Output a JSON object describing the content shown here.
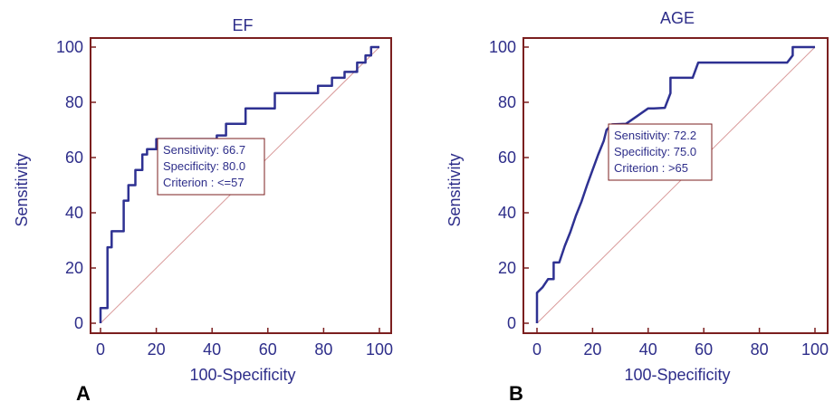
{
  "colors": {
    "curve": "#2e3192",
    "frame": "#7b1f1f",
    "diagonal": "#d99a9a",
    "text": "#2e2e8a",
    "tick": "#7b1f1f"
  },
  "chart_data": [
    {
      "type": "line",
      "panel": "A",
      "title": "EF",
      "xlabel": "100-Specificity",
      "ylabel": "Sensitivity",
      "xlim": [
        0,
        100
      ],
      "ylim": [
        0,
        100
      ],
      "xticks": [
        "0",
        "20",
        "40",
        "60",
        "80",
        "100"
      ],
      "yticks": [
        "0",
        "20",
        "40",
        "60",
        "80",
        "100"
      ],
      "reference_line": [
        [
          0,
          0
        ],
        [
          100,
          100
        ]
      ],
      "series": [
        {
          "x": [
            0,
            0,
            2.5,
            2.5,
            4,
            4,
            8.3,
            8.3,
            10,
            10,
            12.5,
            12.5,
            15,
            15,
            16.7,
            16.7,
            20,
            20,
            41.7,
            41.7,
            45,
            45,
            52,
            52,
            62.5,
            62.5,
            78,
            78,
            83,
            83,
            87.5,
            87.5,
            92,
            92,
            95,
            95,
            97,
            97,
            100
          ],
          "y": [
            0,
            5.5,
            5.5,
            27.5,
            27.5,
            33.3,
            33.3,
            44.4,
            44.4,
            50,
            50,
            55.5,
            55.5,
            61.1,
            61.1,
            63,
            63,
            66.7,
            66.7,
            68,
            68,
            72.2,
            72.2,
            77.8,
            77.8,
            83.3,
            83.3,
            86,
            86,
            88.9,
            88.9,
            91,
            91,
            94.4,
            94.4,
            97,
            97,
            100,
            100
          ]
        }
      ],
      "annotation": {
        "sensitivity": "Sensitivity: 66.7",
        "specificity": "Specificity: 80.0",
        "criterion": "Criterion : <=57"
      }
    },
    {
      "type": "line",
      "panel": "B",
      "title": "AGE",
      "xlabel": "100-Specificity",
      "ylabel": "Sensitivity",
      "xlim": [
        0,
        100
      ],
      "ylim": [
        0,
        100
      ],
      "xticks": [
        "0",
        "20",
        "40",
        "60",
        "80",
        "100"
      ],
      "yticks": [
        "0",
        "20",
        "40",
        "60",
        "80",
        "100"
      ],
      "reference_line": [
        [
          0,
          0
        ],
        [
          100,
          100
        ]
      ],
      "series": [
        {
          "x": [
            0,
            0,
            2,
            4,
            6,
            6,
            8,
            10,
            12,
            14,
            16,
            18,
            20,
            22,
            24,
            25,
            27,
            32,
            36,
            40,
            42,
            46,
            48,
            48,
            50,
            56,
            58,
            58,
            70,
            90,
            92,
            92,
            100
          ],
          "y": [
            0,
            11,
            13,
            16,
            16,
            22,
            22,
            28,
            33,
            39,
            44,
            50,
            55.5,
            61,
            66,
            70,
            72,
            72.2,
            75,
            77.8,
            77.8,
            78,
            83.3,
            88.9,
            88.9,
            88.9,
            94.4,
            94.4,
            94.4,
            94.4,
            97,
            100,
            100
          ]
        }
      ],
      "annotation": {
        "sensitivity": "Sensitivity: 72.2",
        "specificity": "Specificity: 75.0",
        "criterion": "Criterion : >65"
      }
    }
  ]
}
